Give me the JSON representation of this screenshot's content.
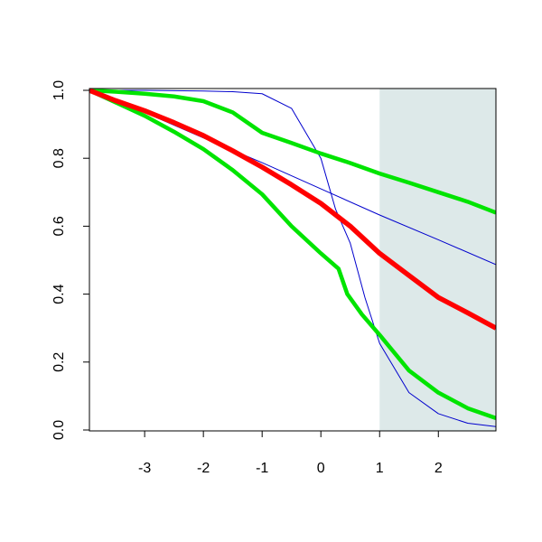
{
  "chart_data": {
    "type": "line",
    "xlim": [
      -3.94,
      2.98
    ],
    "ylim": [
      0,
      1
    ],
    "xticks": [
      -3,
      -2,
      -1,
      0,
      1,
      2
    ],
    "yticks": [
      {
        "value": 0,
        "label": "0.0"
      },
      0.2,
      0.4,
      0.6,
      0.8,
      {
        "value": 1,
        "label": "1.0"
      }
    ],
    "shaded_region": {
      "x": [
        1,
        2.98
      ],
      "color": "#dde9e9"
    },
    "series": [
      {
        "color": "#0000cd",
        "width": 1,
        "x": [
          -3.94,
          -3,
          -2,
          -1,
          0,
          1,
          2,
          2.98
        ],
        "values": [
          1.0,
          0.935,
          0.86,
          0.787,
          0.71,
          0.633,
          0.56,
          0.487
        ]
      },
      {
        "color": "#0000cd",
        "width": 1,
        "x": [
          -3.94,
          -3,
          -2,
          -1.5,
          -1,
          -0.5,
          0,
          0.25,
          0.5,
          0.75,
          1,
          1.5,
          2,
          2.5,
          2.98
        ],
        "values": [
          1.0,
          1.0,
          0.998,
          0.996,
          0.99,
          0.947,
          0.8,
          0.65,
          0.55,
          0.39,
          0.255,
          0.11,
          0.048,
          0.02,
          0.01
        ]
      },
      {
        "color": "#00e400",
        "width": 4.5,
        "x": [
          -3.94,
          -3.5,
          -3,
          -2.5,
          -2,
          -1.5,
          -1,
          -0.5,
          0,
          0.5,
          1,
          1.5,
          2,
          2.5,
          2.98
        ],
        "values": [
          1.0,
          0.996,
          0.99,
          0.982,
          0.968,
          0.935,
          0.875,
          0.845,
          0.814,
          0.786,
          0.755,
          0.728,
          0.7,
          0.672,
          0.64
        ]
      },
      {
        "color": "#00e400",
        "width": 4.5,
        "x": [
          -3.94,
          -3.5,
          -3,
          -2.5,
          -2,
          -1.5,
          -1,
          -0.5,
          0,
          0.3,
          0.45,
          0.7,
          1,
          1.5,
          2,
          2.5,
          2.98
        ],
        "values": [
          1.0,
          0.965,
          0.925,
          0.878,
          0.827,
          0.765,
          0.694,
          0.6,
          0.52,
          0.475,
          0.4,
          0.34,
          0.28,
          0.175,
          0.11,
          0.064,
          0.035
        ]
      },
      {
        "color": "#ff0000",
        "width": 5.5,
        "x": [
          -3.94,
          -3.5,
          -3,
          -2.5,
          -2,
          -1.5,
          -1,
          -0.5,
          0,
          0.5,
          1,
          1.5,
          2,
          2.5,
          2.98
        ],
        "values": [
          1.0,
          0.97,
          0.94,
          0.905,
          0.867,
          0.822,
          0.774,
          0.722,
          0.667,
          0.6,
          0.52,
          0.455,
          0.39,
          0.345,
          0.3
        ]
      }
    ]
  }
}
